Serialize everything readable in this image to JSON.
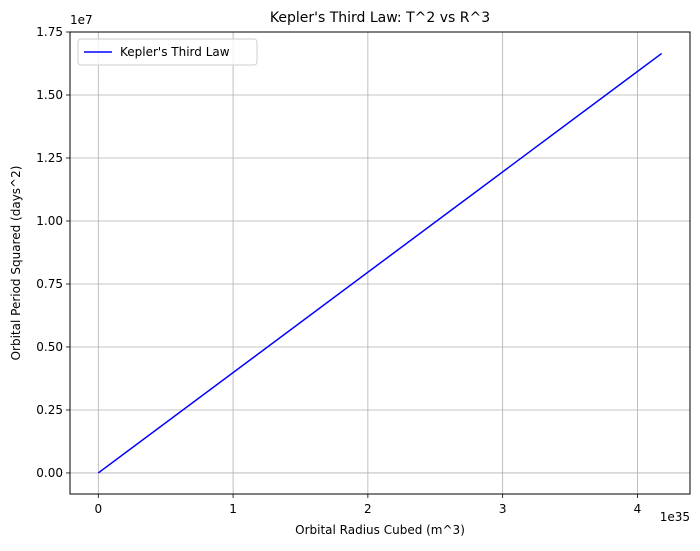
{
  "chart_data": {
    "type": "line",
    "title": "Kepler's Third Law: T^2 vs R^3",
    "xlabel": "Orbital Radius Cubed (m^3)",
    "ylabel": "Orbital Period Squared (days^2)",
    "x_offset_label": "1e35",
    "y_offset_label": "1e7",
    "x_scale_exponent": 35,
    "y_scale_exponent": 7,
    "xlim": [
      -0.21,
      4.39
    ],
    "ylim": [
      -0.0835,
      1.75
    ],
    "x_ticks": [
      0,
      1,
      2,
      3,
      4
    ],
    "x_tick_labels": [
      "0",
      "1",
      "2",
      "3",
      "4"
    ],
    "y_ticks": [
      0,
      0.25,
      0.5,
      0.75,
      1.0,
      1.25,
      1.5,
      1.75
    ],
    "y_tick_labels": [
      "0.00",
      "0.25",
      "0.50",
      "0.75",
      "1.00",
      "1.25",
      "1.50",
      "1.75"
    ],
    "grid": true,
    "legend_position": "top-left",
    "series": [
      {
        "name": "Kepler's Third Law",
        "color": "#0000ff",
        "x": [
          0,
          4.18
        ],
        "y": [
          0,
          1.665
        ]
      }
    ]
  }
}
